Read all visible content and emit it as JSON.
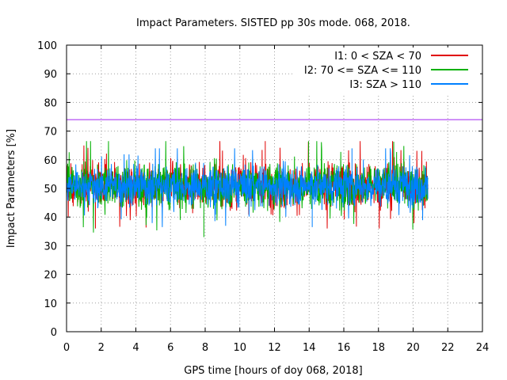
{
  "chart_data": {
    "type": "line",
    "title": "Impact Parameters. SISTED pp 30s mode. 068, 2018.",
    "xlabel": "GPS time [hours of doy 068, 2018]",
    "ylabel": "Impact Parameters [%]",
    "xlim": [
      0,
      24
    ],
    "ylim": [
      0,
      100
    ],
    "xticks": [
      0,
      2,
      4,
      6,
      8,
      10,
      12,
      14,
      16,
      18,
      20,
      22,
      24
    ],
    "yticks": [
      0,
      10,
      20,
      30,
      40,
      50,
      60,
      70,
      80,
      90,
      100
    ],
    "grid": true,
    "legend_position": "top-right",
    "threshold": {
      "value": 74,
      "color": "#a020f0"
    },
    "data_span_hours": [
      0,
      20.85
    ],
    "series": [
      {
        "name": "I1: 0 < SZA < 70",
        "color": "#e00000",
        "mean": 51,
        "typical_range": [
          41,
          61
        ],
        "min": 36,
        "max": 66.5
      },
      {
        "name": "I2: 70 <= SZA <= 110",
        "color": "#00b000",
        "mean": 51,
        "typical_range": [
          41,
          61
        ],
        "min": 33,
        "max": 66.5
      },
      {
        "name": "I3: SZA > 110",
        "color": "#0080ff",
        "mean": 51,
        "typical_range": [
          42,
          60
        ],
        "min": 36.5,
        "max": 64
      }
    ]
  }
}
